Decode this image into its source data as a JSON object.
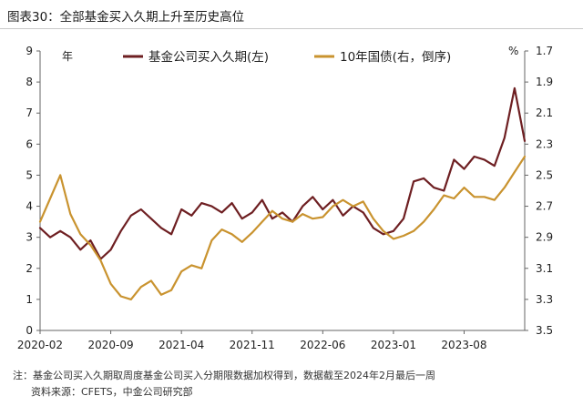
{
  "figure_title": "图表30：全部基金买入久期上升至历史高位",
  "chart_data": {
    "type": "line",
    "left_axis": {
      "unit": "年",
      "min": 0,
      "max": 9,
      "ticks": [
        "0",
        "1",
        "2",
        "3",
        "4",
        "5",
        "6",
        "7",
        "8",
        "9"
      ]
    },
    "right_axis": {
      "unit": "%",
      "min": 1.7,
      "max": 3.5,
      "inverted": true,
      "ticks": [
        "1.7",
        "1.9",
        "2.1",
        "2.3",
        "2.5",
        "2.7",
        "2.9",
        "3.1",
        "3.3",
        "3.5"
      ]
    },
    "x_axis": {
      "start": "2020-02",
      "end": "2024-02",
      "tick_labels": [
        "2020-02",
        "2020-09",
        "2021-04",
        "2021-11",
        "2022-06",
        "2023-01",
        "2023-08"
      ]
    },
    "colors": {
      "duration": "#6e1f22",
      "yield": "#c9932f"
    },
    "series": [
      {
        "name": "基金公司买入久期(左)",
        "axis": "left",
        "x": [
          "2020-02",
          "2020-03",
          "2020-04",
          "2020-05",
          "2020-06",
          "2020-07",
          "2020-08",
          "2020-09",
          "2020-10",
          "2020-11",
          "2020-12",
          "2021-01",
          "2021-02",
          "2021-03",
          "2021-04",
          "2021-05",
          "2021-06",
          "2021-07",
          "2021-08",
          "2021-09",
          "2021-10",
          "2021-11",
          "2021-12",
          "2022-01",
          "2022-02",
          "2022-03",
          "2022-04",
          "2022-05",
          "2022-06",
          "2022-07",
          "2022-08",
          "2022-09",
          "2022-10",
          "2022-11",
          "2022-12",
          "2023-01",
          "2023-02",
          "2023-03",
          "2023-04",
          "2023-05",
          "2023-06",
          "2023-07",
          "2023-08",
          "2023-09",
          "2023-10",
          "2023-11",
          "2023-12",
          "2024-01",
          "2024-02"
        ],
        "values": [
          3.3,
          3.0,
          3.2,
          3.0,
          2.6,
          2.9,
          2.3,
          2.6,
          3.2,
          3.7,
          3.9,
          3.6,
          3.3,
          3.1,
          3.9,
          3.7,
          4.1,
          4.0,
          3.8,
          4.1,
          3.6,
          3.8,
          4.2,
          3.6,
          3.8,
          3.5,
          4.0,
          4.3,
          3.9,
          4.2,
          3.7,
          4.0,
          3.8,
          3.3,
          3.1,
          3.2,
          3.6,
          4.8,
          4.9,
          4.6,
          4.5,
          5.5,
          5.2,
          5.6,
          5.5,
          5.3,
          6.2,
          7.8,
          6.1
        ]
      },
      {
        "name": "10年国债(右，倒序)",
        "axis": "right",
        "x": [
          "2020-02",
          "2020-03",
          "2020-04",
          "2020-05",
          "2020-06",
          "2020-07",
          "2020-08",
          "2020-09",
          "2020-10",
          "2020-11",
          "2020-12",
          "2021-01",
          "2021-02",
          "2021-03",
          "2021-04",
          "2021-05",
          "2021-06",
          "2021-07",
          "2021-08",
          "2021-09",
          "2021-10",
          "2021-11",
          "2021-12",
          "2022-01",
          "2022-02",
          "2022-03",
          "2022-04",
          "2022-05",
          "2022-06",
          "2022-07",
          "2022-08",
          "2022-09",
          "2022-10",
          "2022-11",
          "2022-12",
          "2023-01",
          "2023-02",
          "2023-03",
          "2023-04",
          "2023-05",
          "2023-06",
          "2023-07",
          "2023-08",
          "2023-09",
          "2023-10",
          "2023-11",
          "2023-12",
          "2024-01",
          "2024-02"
        ],
        "values": [
          2.8,
          2.65,
          2.5,
          2.75,
          2.88,
          2.95,
          3.05,
          3.2,
          3.28,
          3.3,
          3.22,
          3.18,
          3.27,
          3.24,
          3.12,
          3.08,
          3.1,
          2.92,
          2.85,
          2.88,
          2.93,
          2.87,
          2.8,
          2.73,
          2.78,
          2.8,
          2.75,
          2.78,
          2.77,
          2.7,
          2.66,
          2.7,
          2.67,
          2.78,
          2.86,
          2.91,
          2.89,
          2.86,
          2.8,
          2.72,
          2.63,
          2.65,
          2.58,
          2.64,
          2.64,
          2.66,
          2.58,
          2.48,
          2.38
        ]
      }
    ]
  },
  "notes": {
    "line1": "注：基金公司买入久期取周度基金公司买入分期限数据加权得到，数据截至2024年2月最后一周",
    "line2": "资料来源：CFETS，中金公司研究部"
  }
}
